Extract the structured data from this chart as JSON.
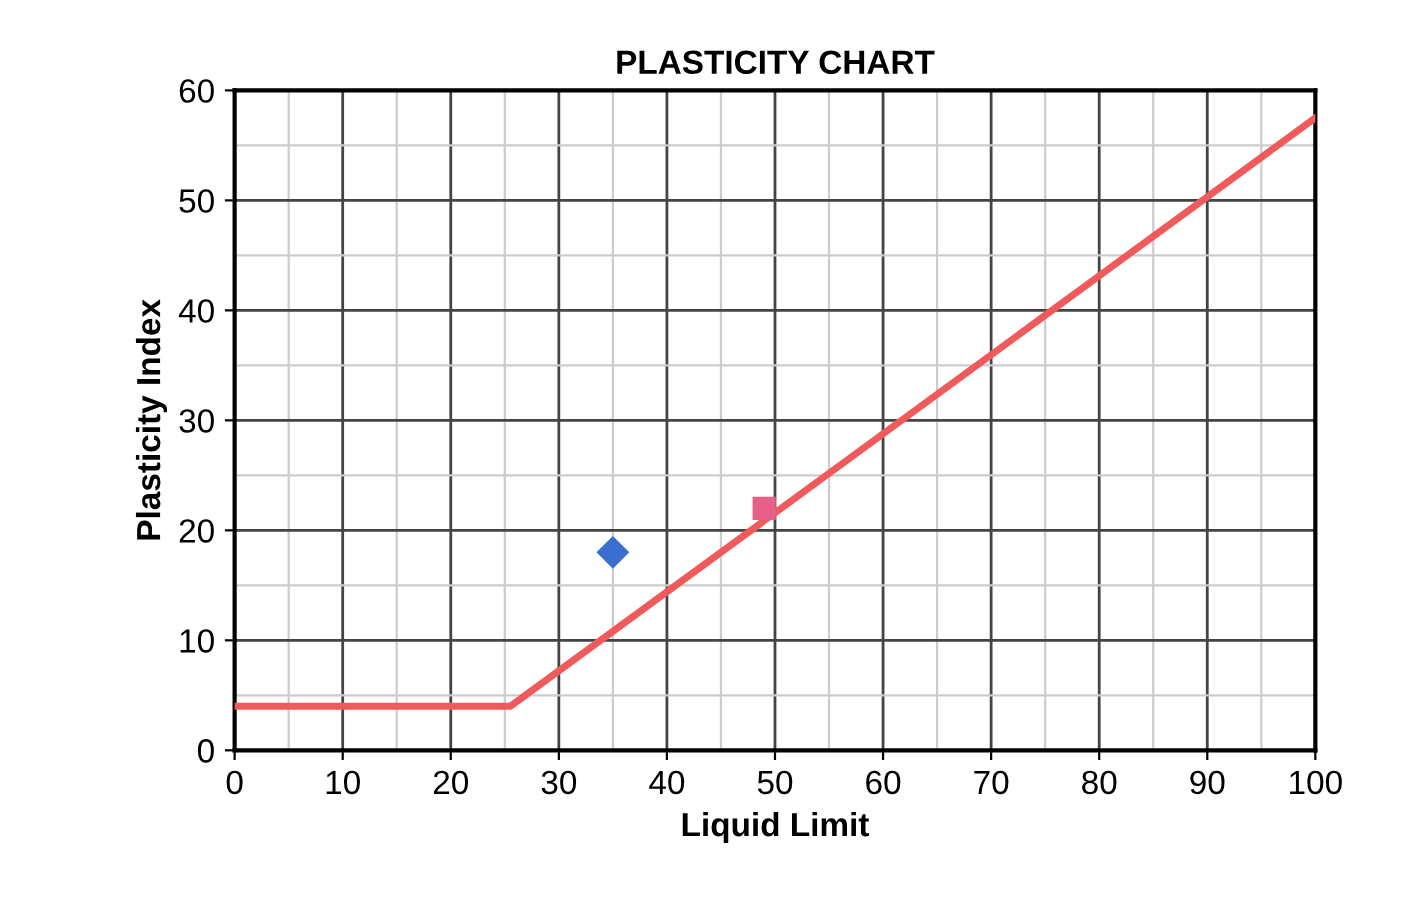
{
  "chart_data": {
    "type": "line",
    "title": "PLASTICITY CHART",
    "xlabel": "Liquid Limit",
    "ylabel": "Plasticity Index",
    "xlim": [
      0,
      100
    ],
    "xticks": [
      0,
      10,
      20,
      30,
      40,
      50,
      60,
      70,
      80,
      90,
      100
    ],
    "ylim": [
      0,
      60
    ],
    "yticks": [
      0,
      10,
      20,
      30,
      40,
      50,
      60
    ],
    "grid": true,
    "series": [
      {
        "color": "#f05a5a",
        "x": [
          0,
          25.5,
          100
        ],
        "values": [
          4,
          4,
          57.5
        ],
        "marker": "none",
        "line_style": "solid"
      },
      {
        "type": "scatter",
        "color": "#3a6fd0",
        "x": [
          35
        ],
        "values": [
          18
        ],
        "marker": "diamond"
      },
      {
        "type": "scatter",
        "color": "#e8608a",
        "x": [
          49
        ],
        "values": [
          22
        ],
        "marker": "square"
      }
    ]
  }
}
